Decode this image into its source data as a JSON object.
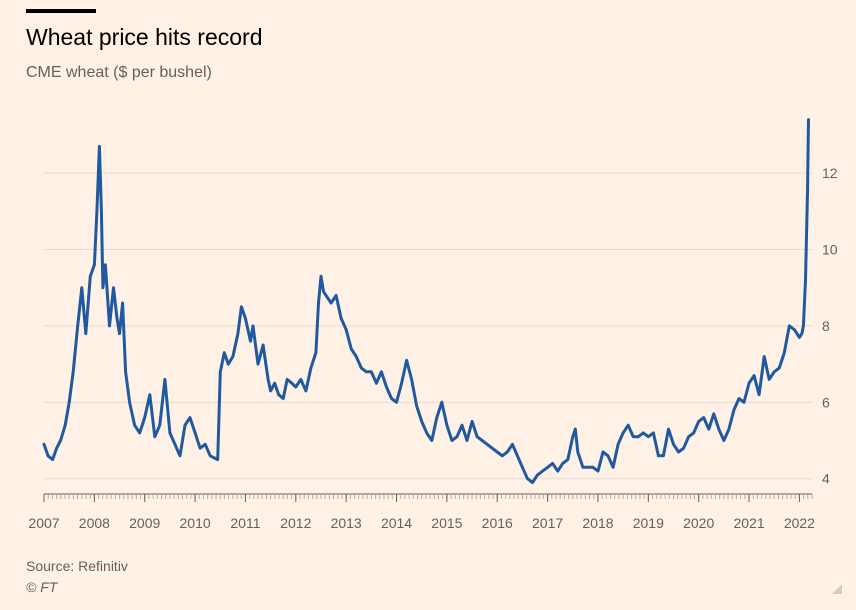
{
  "chart_data": {
    "type": "line",
    "title": "Wheat price hits record",
    "subtitle": "CME wheat ($ per bushel)",
    "source": "Source: Refinitiv",
    "credit": "© FT",
    "x_ticks": [
      "2007",
      "2008",
      "2009",
      "2010",
      "2011",
      "2012",
      "2013",
      "2014",
      "2015",
      "2016",
      "2017",
      "2018",
      "2019",
      "2020",
      "2021",
      "2022"
    ],
    "y_ticks": [
      4,
      6,
      8,
      10,
      12
    ],
    "xlim": [
      2007.0,
      2022.25
    ],
    "ylim": [
      3.6,
      13.6
    ],
    "grid": true,
    "y_axis_side": "right",
    "line_color": "#1f5aa0",
    "series": [
      {
        "name": "",
        "x": [
          2007.0,
          2007.08,
          2007.17,
          2007.25,
          2007.33,
          2007.42,
          2007.5,
          2007.58,
          2007.67,
          2007.75,
          2007.83,
          2007.92,
          2008.0,
          2008.05,
          2008.1,
          2008.14,
          2008.17,
          2008.22,
          2008.3,
          2008.38,
          2008.45,
          2008.5,
          2008.56,
          2008.62,
          2008.7,
          2008.8,
          2008.9,
          2009.0,
          2009.1,
          2009.2,
          2009.3,
          2009.4,
          2009.5,
          2009.6,
          2009.7,
          2009.8,
          2009.9,
          2010.0,
          2010.1,
          2010.2,
          2010.3,
          2010.45,
          2010.5,
          2010.58,
          2010.66,
          2010.75,
          2010.85,
          2010.92,
          2011.0,
          2011.1,
          2011.15,
          2011.25,
          2011.35,
          2011.45,
          2011.5,
          2011.58,
          2011.66,
          2011.75,
          2011.83,
          2011.92,
          2012.0,
          2012.1,
          2012.2,
          2012.3,
          2012.4,
          2012.45,
          2012.5,
          2012.55,
          2012.6,
          2012.7,
          2012.8,
          2012.9,
          2013.0,
          2013.1,
          2013.2,
          2013.3,
          2013.4,
          2013.5,
          2013.6,
          2013.7,
          2013.8,
          2013.9,
          2014.0,
          2014.1,
          2014.2,
          2014.3,
          2014.4,
          2014.5,
          2014.6,
          2014.7,
          2014.8,
          2014.9,
          2015.0,
          2015.1,
          2015.2,
          2015.3,
          2015.4,
          2015.5,
          2015.6,
          2015.7,
          2015.8,
          2015.9,
          2016.0,
          2016.1,
          2016.2,
          2016.3,
          2016.4,
          2016.5,
          2016.6,
          2016.7,
          2016.8,
          2016.9,
          2017.0,
          2017.1,
          2017.2,
          2017.3,
          2017.4,
          2017.5,
          2017.55,
          2017.6,
          2017.7,
          2017.8,
          2017.9,
          2018.0,
          2018.1,
          2018.2,
          2018.3,
          2018.4,
          2018.5,
          2018.6,
          2018.7,
          2018.8,
          2018.9,
          2019.0,
          2019.1,
          2019.2,
          2019.3,
          2019.4,
          2019.5,
          2019.6,
          2019.7,
          2019.8,
          2019.9,
          2020.0,
          2020.1,
          2020.2,
          2020.3,
          2020.4,
          2020.5,
          2020.6,
          2020.7,
          2020.8,
          2020.9,
          2021.0,
          2021.1,
          2021.2,
          2021.3,
          2021.4,
          2021.5,
          2021.6,
          2021.7,
          2021.8,
          2021.9,
          2022.0,
          2022.05,
          2022.08,
          2022.12,
          2022.16,
          2022.18
        ],
        "values": [
          4.9,
          4.6,
          4.5,
          4.8,
          5.0,
          5.4,
          6.0,
          6.8,
          8.0,
          9.0,
          7.8,
          9.3,
          9.6,
          11.0,
          12.7,
          11.0,
          9.0,
          9.6,
          8.0,
          9.0,
          8.2,
          7.8,
          8.6,
          6.8,
          6.0,
          5.4,
          5.2,
          5.6,
          6.2,
          5.1,
          5.4,
          6.6,
          5.2,
          4.9,
          4.6,
          5.4,
          5.6,
          5.2,
          4.8,
          4.9,
          4.6,
          4.5,
          6.8,
          7.3,
          7.0,
          7.2,
          7.8,
          8.5,
          8.2,
          7.6,
          8.0,
          7.0,
          7.5,
          6.6,
          6.3,
          6.5,
          6.2,
          6.1,
          6.6,
          6.5,
          6.4,
          6.6,
          6.3,
          6.9,
          7.3,
          8.6,
          9.3,
          8.9,
          8.8,
          8.6,
          8.8,
          8.2,
          7.9,
          7.4,
          7.2,
          6.9,
          6.8,
          6.8,
          6.5,
          6.8,
          6.4,
          6.1,
          6.0,
          6.5,
          7.1,
          6.6,
          5.9,
          5.5,
          5.2,
          5.0,
          5.6,
          6.0,
          5.4,
          5.0,
          5.1,
          5.4,
          5.0,
          5.5,
          5.1,
          5.0,
          4.9,
          4.8,
          4.7,
          4.6,
          4.7,
          4.9,
          4.6,
          4.3,
          4.0,
          3.9,
          4.1,
          4.2,
          4.3,
          4.4,
          4.2,
          4.4,
          4.5,
          5.1,
          5.3,
          4.7,
          4.3,
          4.3,
          4.3,
          4.2,
          4.7,
          4.6,
          4.3,
          4.9,
          5.2,
          5.4,
          5.1,
          5.1,
          5.2,
          5.1,
          5.2,
          4.6,
          4.6,
          5.3,
          4.9,
          4.7,
          4.8,
          5.1,
          5.2,
          5.5,
          5.6,
          5.3,
          5.7,
          5.3,
          5.0,
          5.3,
          5.8,
          6.1,
          6.0,
          6.5,
          6.7,
          6.2,
          7.2,
          6.6,
          6.8,
          6.9,
          7.3,
          8.0,
          7.9,
          7.7,
          7.8,
          8.0,
          9.2,
          11.5,
          13.4
        ]
      }
    ]
  }
}
